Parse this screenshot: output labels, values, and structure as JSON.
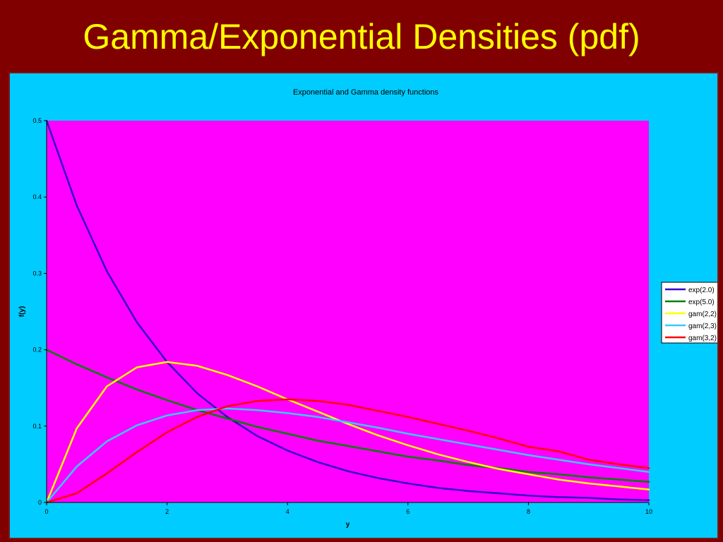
{
  "slide": {
    "title": "Gamma/Exponential Densities (pdf)",
    "background_color": "#800000",
    "title_color": "#ffff00"
  },
  "colors": {
    "chart_area": "#00ccff",
    "plot_area": "#ff00ff"
  },
  "chart_data": {
    "type": "line",
    "title": "Exponential and Gamma density functions",
    "xlabel": "y",
    "ylabel": "f(y)",
    "xlim": [
      0,
      10
    ],
    "ylim": [
      0,
      0.5
    ],
    "x_ticks": [
      "0",
      "2",
      "4",
      "6",
      "8",
      "10"
    ],
    "y_ticks": [
      "0",
      "0.1",
      "0.2",
      "0.3",
      "0.4",
      "0.5"
    ],
    "grid": false,
    "legend_position": "right",
    "x": [
      0,
      0.5,
      1,
      1.5,
      2,
      2.5,
      3,
      3.5,
      4,
      4.5,
      5,
      5.5,
      6,
      6.5,
      7,
      7.5,
      8,
      8.5,
      9,
      9.5,
      10
    ],
    "series": [
      {
        "name": "exp(2.0)",
        "color": "#3300cc",
        "values": [
          0.5,
          0.389,
          0.303,
          0.236,
          0.184,
          0.143,
          0.112,
          0.087,
          0.068,
          0.053,
          0.041,
          0.032,
          0.025,
          0.019,
          0.015,
          0.012,
          0.009,
          0.007,
          0.006,
          0.004,
          0.003
        ]
      },
      {
        "name": "exp(5.0)",
        "color": "#008000",
        "values": [
          0.2,
          0.181,
          0.164,
          0.148,
          0.134,
          0.121,
          0.11,
          0.099,
          0.09,
          0.081,
          0.074,
          0.067,
          0.06,
          0.055,
          0.049,
          0.045,
          0.04,
          0.037,
          0.033,
          0.03,
          0.027
        ]
      },
      {
        "name": "gam(2,2)",
        "color": "#ffff00",
        "values": [
          0,
          0.097,
          0.152,
          0.177,
          0.184,
          0.179,
          0.167,
          0.152,
          0.135,
          0.119,
          0.103,
          0.088,
          0.075,
          0.063,
          0.053,
          0.044,
          0.037,
          0.03,
          0.025,
          0.021,
          0.017
        ]
      },
      {
        "name": "gam(2,3)",
        "color": "#33ccff",
        "values": [
          0,
          0.047,
          0.08,
          0.101,
          0.114,
          0.121,
          0.123,
          0.121,
          0.117,
          0.112,
          0.105,
          0.098,
          0.09,
          0.083,
          0.076,
          0.069,
          0.062,
          0.056,
          0.05,
          0.045,
          0.04
        ]
      },
      {
        "name": "gam(3,2)",
        "color": "#ff0000",
        "values": [
          0,
          0.012,
          0.038,
          0.066,
          0.092,
          0.112,
          0.126,
          0.133,
          0.135,
          0.133,
          0.128,
          0.12,
          0.112,
          0.103,
          0.094,
          0.084,
          0.073,
          0.067,
          0.056,
          0.05,
          0.045
        ]
      }
    ]
  }
}
